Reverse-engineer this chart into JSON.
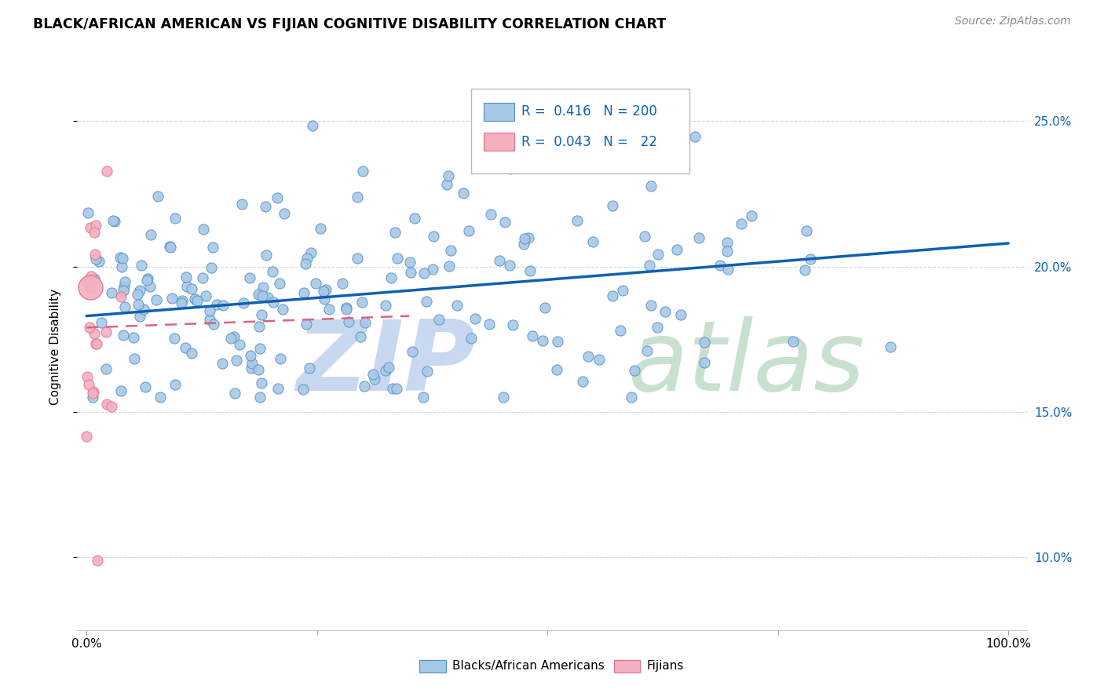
{
  "title": "BLACK/AFRICAN AMERICAN VS FIJIAN COGNITIVE DISABILITY CORRELATION CHART",
  "source": "Source: ZipAtlas.com",
  "ylabel": "Cognitive Disability",
  "ytick_labels": [
    "10.0%",
    "15.0%",
    "20.0%",
    "25.0%"
  ],
  "ytick_values": [
    0.1,
    0.15,
    0.2,
    0.25
  ],
  "xlim": [
    -0.01,
    1.02
  ],
  "ylim": [
    0.075,
    0.27
  ],
  "blue_R": "0.416",
  "blue_N": "200",
  "pink_R": "0.043",
  "pink_N": "22",
  "blue_color": "#a8c8e8",
  "pink_color": "#f4b0c0",
  "blue_edge_color": "#5090c0",
  "pink_edge_color": "#e07090",
  "blue_line_color": "#1060b0",
  "pink_line_color": "#e06080",
  "text_blue_color": "#1060b0",
  "watermark_zip_color": "#c8d8f0",
  "watermark_atlas_color": "#c8e0d0",
  "legend_label_blue": "Blacks/African Americans",
  "legend_label_pink": "Fijians",
  "blue_trendline_x": [
    0.0,
    1.0
  ],
  "blue_trendline_y": [
    0.183,
    0.208
  ],
  "pink_trendline_x": [
    0.0,
    0.35
  ],
  "pink_trendline_y": [
    0.179,
    0.183
  ]
}
